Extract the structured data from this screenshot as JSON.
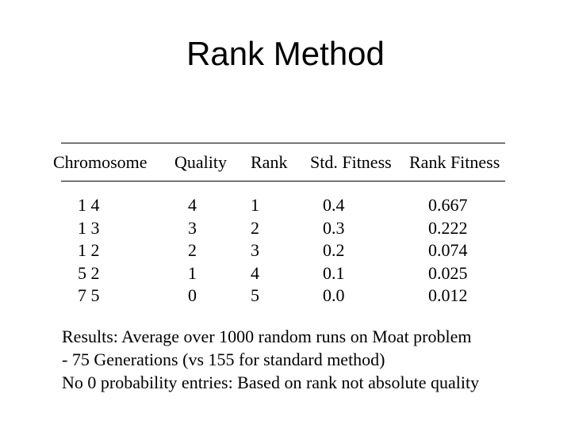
{
  "title": "Rank Method",
  "table": {
    "headers": [
      "Chromosome",
      "Quality",
      "Rank",
      "Std. Fitness",
      "Rank Fitness"
    ],
    "rows": [
      [
        "1 4",
        "4",
        "1",
        "0.4",
        "0.667"
      ],
      [
        "1 3",
        "3",
        "2",
        "0.3",
        "0.222"
      ],
      [
        "1 2",
        "2",
        "3",
        "0.2",
        "0.074"
      ],
      [
        "5 2",
        "1",
        "4",
        "0.1",
        "0.025"
      ],
      [
        "7 5",
        "0",
        "5",
        "0.0",
        "0.012"
      ]
    ]
  },
  "notes": [
    "Results: Average over 1000 random runs on Moat problem",
    "- 75 Generations (vs 155 for standard method)",
    "No 0 probability entries: Based on rank not absolute quality"
  ]
}
